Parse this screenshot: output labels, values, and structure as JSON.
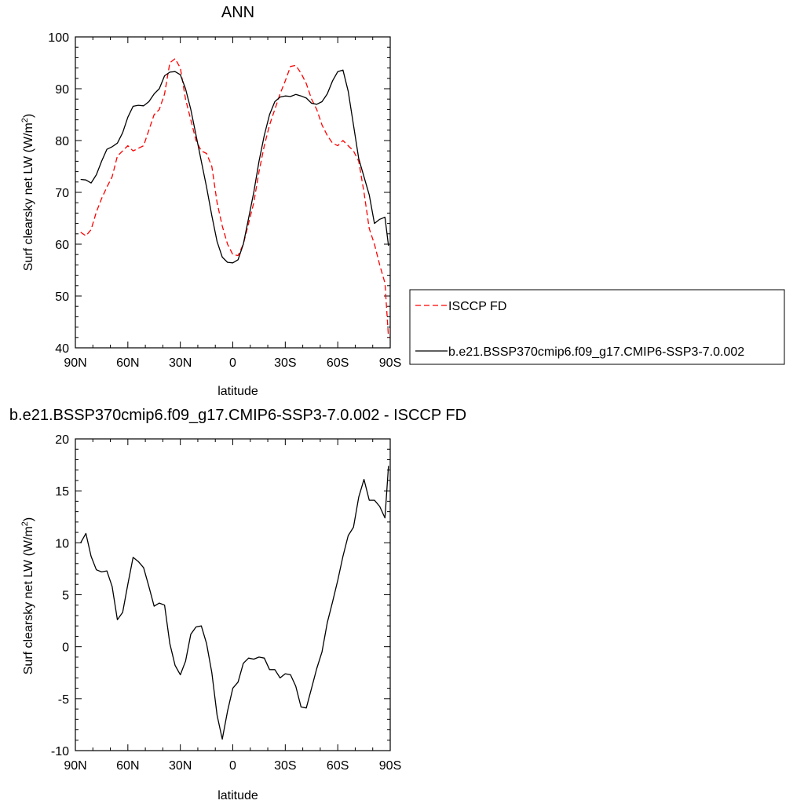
{
  "chart_data": [
    {
      "type": "line",
      "title": "ANN",
      "xlabel": "latitude",
      "ylabel": "Surf clearsky net LW (W/m²)",
      "ylim": [
        40,
        100
      ],
      "xlim": [
        -90,
        90
      ],
      "x_tick_labels": [
        "90N",
        "60N",
        "30N",
        "0",
        "30S",
        "60S",
        "90S"
      ],
      "y_tick_labels": [
        "40",
        "50",
        "60",
        "70",
        "80",
        "90",
        "100"
      ],
      "legend_placement": "right",
      "series": [
        {
          "name": "ISCCP FD",
          "color": "#ff0000",
          "dash": "dashed",
          "x": [
            -87,
            -84,
            -81,
            -78,
            -75,
            -72,
            -69,
            -66,
            -63,
            -60,
            -57,
            -54,
            -51,
            -48,
            -45,
            -42,
            -39,
            -36,
            -33,
            -30,
            -27,
            -24,
            -21,
            -18,
            -15,
            -12,
            -9,
            -6,
            -3,
            0,
            3,
            6,
            9,
            12,
            15,
            18,
            21,
            24,
            27,
            30,
            33,
            36,
            39,
            42,
            45,
            48,
            51,
            54,
            57,
            60,
            63,
            66,
            69,
            72,
            75,
            78,
            81,
            84,
            87,
            89
          ],
          "values": [
            62.3,
            61.6,
            62.8,
            66.2,
            68.8,
            71.0,
            73.0,
            77.0,
            78.0,
            79.0,
            78.0,
            78.5,
            79.0,
            82.0,
            85.0,
            86.0,
            89.0,
            95.0,
            95.8,
            94.0,
            88.0,
            84.0,
            80.0,
            78.0,
            77.5,
            75.0,
            68.0,
            63.5,
            60.0,
            58.0,
            57.8,
            60.0,
            64.0,
            68.0,
            74.0,
            79.0,
            83.0,
            86.0,
            89.0,
            91.5,
            94.3,
            94.5,
            93.0,
            91.0,
            88.0,
            86.0,
            83.0,
            81.0,
            79.5,
            79.0,
            80.0,
            79.0,
            78.0,
            76.0,
            70.0,
            63.0,
            60.0,
            56.0,
            52.5,
            42.0
          ]
        },
        {
          "name": "b.e21.BSSP370cmip6.f09_g17.CMIP6-SSP3-7.0.002",
          "color": "#000000",
          "dash": "solid",
          "x": [
            -87,
            -84,
            -81,
            -78,
            -75,
            -72,
            -69,
            -66,
            -63,
            -60,
            -57,
            -54,
            -51,
            -48,
            -45,
            -42,
            -39,
            -36,
            -33,
            -30,
            -27,
            -24,
            -21,
            -18,
            -15,
            -12,
            -9,
            -6,
            -3,
            0,
            3,
            6,
            9,
            12,
            15,
            18,
            21,
            24,
            27,
            30,
            33,
            36,
            39,
            42,
            45,
            48,
            51,
            54,
            57,
            60,
            63,
            66,
            69,
            72,
            75,
            78,
            81,
            84,
            87,
            89
          ],
          "values": [
            72.5,
            72.4,
            71.8,
            73.4,
            76.0,
            78.3,
            78.8,
            79.5,
            81.5,
            84.5,
            86.6,
            86.8,
            86.7,
            87.5,
            89.0,
            90.0,
            92.5,
            93.2,
            93.3,
            92.7,
            90.0,
            86.0,
            81.0,
            76.0,
            71.0,
            65.5,
            60.5,
            57.5,
            56.5,
            56.4,
            57.0,
            60.0,
            65.0,
            70.0,
            76.0,
            81.0,
            85.0,
            87.5,
            88.4,
            88.6,
            88.5,
            88.9,
            88.6,
            88.2,
            87.2,
            87.0,
            87.5,
            89.0,
            91.5,
            93.3,
            93.6,
            89.5,
            83.0,
            76.5,
            73.0,
            69.5,
            64.0,
            64.8,
            65.2,
            59.7
          ]
        }
      ]
    },
    {
      "type": "line",
      "title": "b.e21.BSSP370cmip6.f09_g17.CMIP6-SSP3-7.0.002 - ISCCP FD",
      "xlabel": "latitude",
      "ylabel": "Surf clearsky net LW (W/m²)",
      "ylim": [
        -10,
        20
      ],
      "xlim": [
        -90,
        90
      ],
      "x_tick_labels": [
        "90N",
        "60N",
        "30N",
        "0",
        "30S",
        "60S",
        "90S"
      ],
      "y_tick_labels": [
        "-10",
        "-5",
        "0",
        "5",
        "10",
        "15",
        "20"
      ],
      "series": [
        {
          "color": "#000000",
          "dash": "solid",
          "x": [
            -87,
            -84,
            -81,
            -78,
            -75,
            -72,
            -69,
            -66,
            -63,
            -60,
            -57,
            -54,
            -51,
            -48,
            -45,
            -42,
            -39,
            -36,
            -33,
            -30,
            -27,
            -24,
            -21,
            -18,
            -15,
            -12,
            -9,
            -6,
            -3,
            0,
            3,
            6,
            9,
            12,
            15,
            18,
            21,
            24,
            27,
            30,
            33,
            36,
            39,
            42,
            45,
            48,
            51,
            54,
            57,
            60,
            63,
            66,
            69,
            72,
            75,
            78,
            81,
            84,
            87,
            89
          ],
          "values": [
            10.0,
            10.9,
            8.7,
            7.4,
            7.2,
            7.3,
            5.8,
            2.6,
            3.3,
            6.0,
            8.6,
            8.2,
            7.6,
            5.8,
            3.9,
            4.2,
            4.0,
            0.3,
            -1.8,
            -2.7,
            -1.4,
            1.2,
            1.9,
            2.0,
            0.3,
            -2.5,
            -6.6,
            -8.9,
            -6.2,
            -4.0,
            -3.4,
            -1.6,
            -1.1,
            -1.2,
            -1.0,
            -1.1,
            -2.2,
            -2.2,
            -3.0,
            -2.6,
            -2.7,
            -3.8,
            -5.8,
            -5.9,
            -4.0,
            -2.1,
            -0.5,
            2.3,
            4.3,
            6.4,
            8.7,
            10.7,
            11.5,
            14.4,
            16.1,
            14.1,
            14.1,
            13.5,
            12.4,
            17.4
          ]
        }
      ]
    }
  ]
}
